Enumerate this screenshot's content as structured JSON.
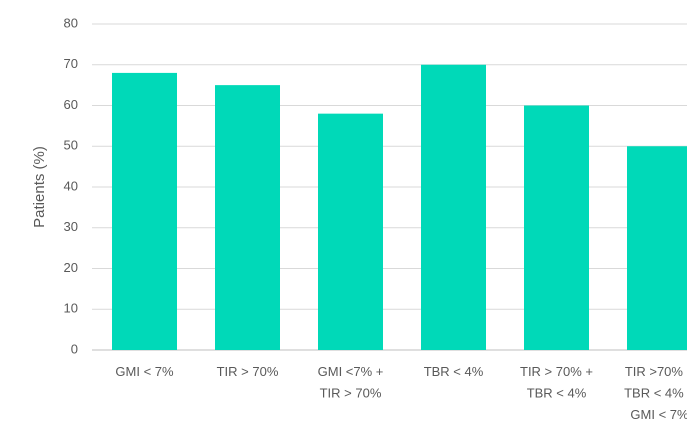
{
  "chart_data": {
    "type": "bar",
    "y_label": "Patients (%)",
    "categories": [
      "GMI < 7%",
      "TIR > 70%",
      "GMI <7% +\nTIR > 70%",
      "TBR < 4%",
      "TIR > 70% +\nTBR < 4%",
      "TIR >70% +\nTBR < 4% +\nGMI < 7%"
    ],
    "values": [
      68,
      65,
      58,
      70,
      60,
      50
    ],
    "color": "#00d9b8",
    "ylim": [
      0,
      80
    ],
    "yticks": [
      0,
      10,
      20,
      30,
      40,
      50,
      60,
      70,
      80
    ],
    "grid": true
  }
}
